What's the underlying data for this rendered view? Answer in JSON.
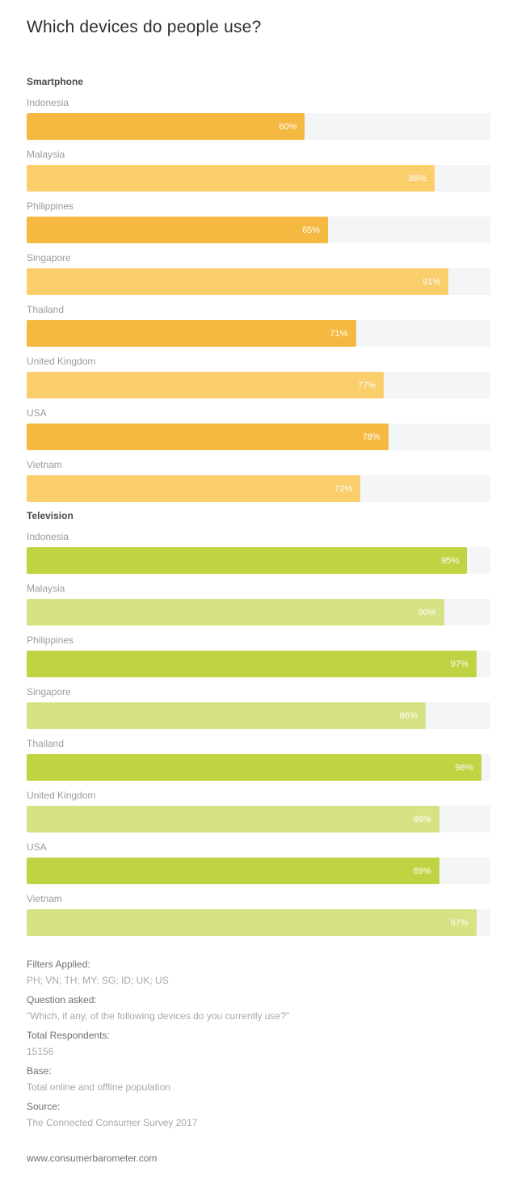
{
  "title": "Which devices do people use?",
  "chart_data": {
    "type": "bar",
    "orientation": "horizontal",
    "value_suffix": "%",
    "xlim": [
      0,
      100
    ],
    "track_color": "#f3f5f6",
    "groups": [
      {
        "label": "Smartphone",
        "colors": [
          "#f5b942",
          "#f9ce6b"
        ],
        "categories": [
          "Indonesia",
          "Malaysia",
          "Philippines",
          "Singapore",
          "Thailand",
          "United Kingdom",
          "USA",
          "Vietnam"
        ],
        "values": [
          60,
          88,
          65,
          91,
          71,
          77,
          78,
          72
        ]
      },
      {
        "label": "Television",
        "colors": [
          "#c0d342",
          "#d6e283"
        ],
        "categories": [
          "Indonesia",
          "Malaysia",
          "Philippines",
          "Singapore",
          "Thailand",
          "United Kingdom",
          "USA",
          "Vietnam"
        ],
        "values": [
          95,
          90,
          97,
          86,
          98,
          89,
          89,
          97
        ]
      }
    ]
  },
  "footer": {
    "rows": [
      {
        "label": "Filters Applied:",
        "value": "PH; VN; TH; MY; SG; ID; UK; US"
      },
      {
        "label": "Question asked:",
        "value": "\"Which, if any, of the following devices do you currently use?\""
      },
      {
        "label": "Total Respondents:",
        "value": "15156"
      },
      {
        "label": "Base:",
        "value": "Total online and offline population"
      },
      {
        "label": "Source:",
        "value": "The Connected Consumer Survey 2017"
      }
    ],
    "website": "www.consumerbarometer.com"
  }
}
